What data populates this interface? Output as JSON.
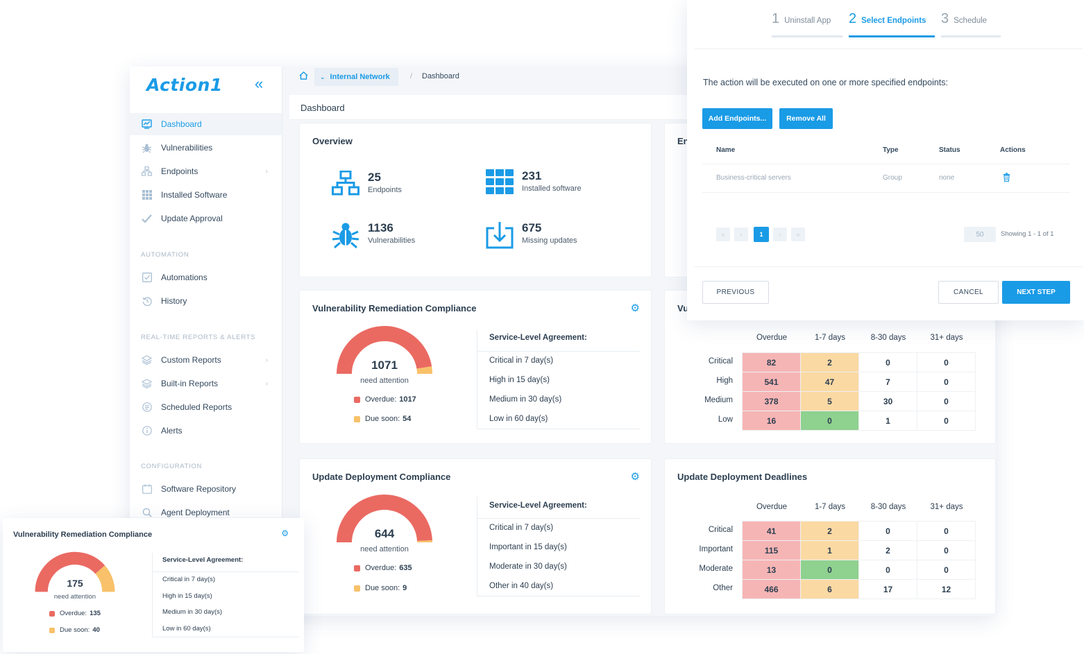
{
  "app": {
    "logo": "Action1"
  },
  "sidebar": {
    "items_top": [
      {
        "label": "Dashboard",
        "icon": "chart-icon",
        "active": true
      },
      {
        "label": "Vulnerabilities",
        "icon": "bug-icon"
      },
      {
        "label": "Endpoints",
        "icon": "network-icon",
        "arrow": true
      },
      {
        "label": "Installed Software",
        "icon": "grid-icon"
      },
      {
        "label": "Update Approval",
        "icon": "check-icon"
      }
    ],
    "automation_title": "AUTOMATION",
    "automation": [
      {
        "label": "Automations",
        "icon": "checkbox-icon"
      },
      {
        "label": "History",
        "icon": "history-icon"
      }
    ],
    "reports_title": "REAL-TIME REPORTS & ALERTS",
    "reports": [
      {
        "label": "Custom Reports",
        "icon": "layers-icon",
        "arrow": true
      },
      {
        "label": "Built-in Reports",
        "icon": "layers-icon",
        "arrow": true
      },
      {
        "label": "Scheduled Reports",
        "icon": "list-icon"
      },
      {
        "label": "Alerts",
        "icon": "info-icon"
      }
    ],
    "config_title": "CONFIGURATION",
    "config": [
      {
        "label": "Software Repository",
        "icon": "box-icon"
      },
      {
        "label": "Agent Deployment",
        "icon": "search-icon"
      }
    ]
  },
  "breadcrumb": {
    "network": "Internal Network",
    "separator": "/",
    "current": "Dashboard"
  },
  "page": {
    "title": "Dashboard",
    "side_cut_1": "En",
    "side_cut_2": "Vu"
  },
  "overview": {
    "title": "Overview",
    "items": [
      {
        "value": "25",
        "label": "Endpoints"
      },
      {
        "value": "231",
        "label": "Installed software"
      },
      {
        "value": "1136",
        "label": "Vulnerabilities"
      },
      {
        "value": "675",
        "label": "Missing updates"
      }
    ]
  },
  "vuln_compliance": {
    "title": "Vulnerability Remediation Compliance",
    "total": "1071",
    "subtitle": "need attention",
    "overdue_label": "Overdue:",
    "overdue": "1017",
    "due_label": "Due soon:",
    "due": "54",
    "due_fraction": 0.05,
    "sla_title": "Service-Level Agreement:",
    "sla": [
      "Critical in 7 day(s)",
      "High in 15 day(s)",
      "Medium in 30 day(s)",
      "Low in 60 day(s)"
    ]
  },
  "update_compliance": {
    "title": "Update Deployment Compliance",
    "total": "644",
    "subtitle": "need attention",
    "overdue_label": "Overdue:",
    "overdue": "635",
    "due_label": "Due soon:",
    "due": "9",
    "due_fraction": 0.014,
    "sla_title": "Service-Level Agreement:",
    "sla": [
      "Critical in 7 day(s)",
      "Important in 15 day(s)",
      "Moderate in 30 day(s)",
      "Other in 40 day(s)"
    ]
  },
  "vuln_deadlines": {
    "columns": [
      "Overdue",
      "1-7 days",
      "8-30 days",
      "31+ days"
    ],
    "rows": [
      {
        "label": "Critical",
        "values": [
          "82",
          "2",
          "0",
          "0"
        ]
      },
      {
        "label": "High",
        "values": [
          "541",
          "47",
          "7",
          "0"
        ]
      },
      {
        "label": "Medium",
        "values": [
          "378",
          "5",
          "30",
          "0"
        ]
      },
      {
        "label": "Low",
        "values": [
          "16",
          "0",
          "1",
          "0"
        ]
      }
    ],
    "colors": [
      [
        "#f6b5b5",
        "#fbd9a3",
        "#ffffff",
        "#ffffff"
      ],
      [
        "#f6b5b5",
        "#fbd9a3",
        "#ffffff",
        "#ffffff"
      ],
      [
        "#f6b5b5",
        "#fbd9a3",
        "#ffffff",
        "#ffffff"
      ],
      [
        "#f6b5b5",
        "#8fd18f",
        "#ffffff",
        "#ffffff"
      ]
    ]
  },
  "update_deadlines": {
    "title": "Update Deployment Deadlines",
    "columns": [
      "Overdue",
      "1-7 days",
      "8-30 days",
      "31+ days"
    ],
    "rows": [
      {
        "label": "Critical",
        "values": [
          "41",
          "2",
          "0",
          "0"
        ]
      },
      {
        "label": "Important",
        "values": [
          "115",
          "1",
          "2",
          "0"
        ]
      },
      {
        "label": "Moderate",
        "values": [
          "13",
          "0",
          "0",
          "0"
        ]
      },
      {
        "label": "Other",
        "values": [
          "466",
          "6",
          "17",
          "12"
        ]
      }
    ],
    "colors": [
      [
        "#f6b5b5",
        "#fbd9a3",
        "#ffffff",
        "#ffffff"
      ],
      [
        "#f6b5b5",
        "#fbd9a3",
        "#ffffff",
        "#ffffff"
      ],
      [
        "#f6b5b5",
        "#8fd18f",
        "#ffffff",
        "#ffffff"
      ],
      [
        "#f6b5b5",
        "#fbd9a3",
        "#ffffff",
        "#ffffff"
      ]
    ]
  },
  "wizard": {
    "steps": [
      {
        "num": "1",
        "label": "Uninstall App"
      },
      {
        "num": "2",
        "label": "Select Endpoints",
        "active": true
      },
      {
        "num": "3",
        "label": "Schedule"
      }
    ],
    "description": "The action will be executed on one or more specified endpoints:",
    "add_label": "Add Endpoints...",
    "remove_label": "Remove All",
    "table": {
      "headers": [
        "Name",
        "Type",
        "Status",
        "Actions"
      ],
      "row": {
        "name": "Business-critical servers",
        "type": "Group",
        "status": "none"
      }
    },
    "pagination": {
      "first": "«",
      "prev": "‹",
      "current": "1",
      "next": "›",
      "last": "»",
      "page_size": "50",
      "showing": "Showing 1 - 1 of 1"
    },
    "previous_label": "PREVIOUS",
    "cancel_label": "CANCEL",
    "next_label": "NEXT STEP"
  },
  "popup": {
    "title": "Vulnerability Remediation Compliance",
    "total": "175",
    "subtitle": "need attention",
    "overdue_label": "Overdue:",
    "overdue": "135",
    "due_label": "Due soon:",
    "due": "40",
    "due_fraction": 0.23,
    "sla_title": "Service-Level Agreement:",
    "sla": [
      "Critical in 7 day(s)",
      "High in 15 day(s)",
      "Medium in 30 day(s)",
      "Low in 60 day(s)"
    ]
  },
  "colors": {
    "accent": "#1a9be6",
    "overdue": "#ea6a62",
    "due_soon": "#f8c16a",
    "ok": "#8fd18f"
  }
}
